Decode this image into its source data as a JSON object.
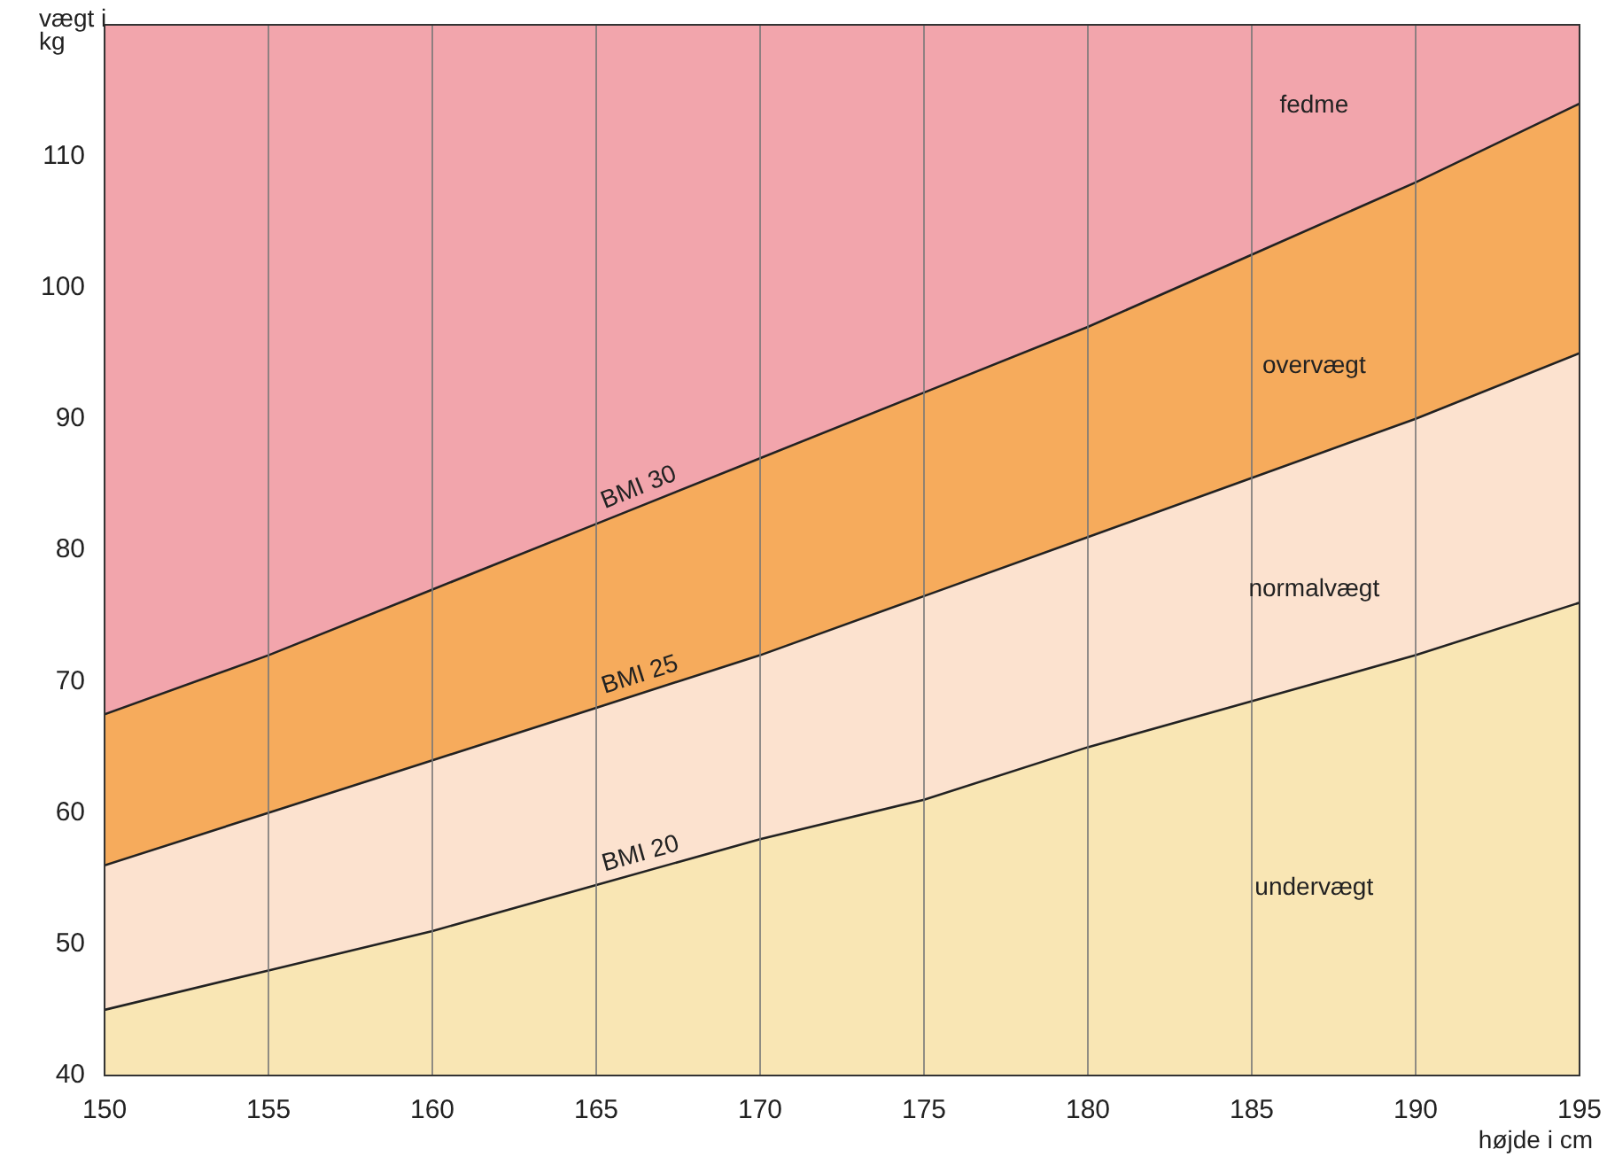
{
  "chart_data": {
    "type": "area",
    "xlabel": "højde i cm",
    "ylabel": "vægt i kg",
    "x": [
      150,
      155,
      160,
      165,
      170,
      175,
      180,
      185,
      190,
      195
    ],
    "series": [
      {
        "name": "BMI 20",
        "color": "#f9e6b4",
        "values": [
          45,
          48,
          51,
          54.5,
          58,
          61,
          65,
          68.5,
          72,
          76
        ]
      },
      {
        "name": "BMI 25",
        "color": "#fce2cf",
        "values": [
          56,
          60,
          64,
          68,
          72,
          76.5,
          81,
          85.5,
          90,
          95
        ]
      },
      {
        "name": "BMI 30",
        "color": "#f6ab5c",
        "values": [
          67.5,
          72,
          77,
          82,
          87,
          92,
          97,
          102.5,
          108,
          114
        ]
      }
    ],
    "bands": [
      {
        "axis": "y",
        "from": 67.5,
        "to": 120,
        "color": "#f2a5ac"
      }
    ],
    "annotations": [
      "fedme",
      "overvægt",
      "normalvægt",
      "undervægt"
    ],
    "xlim": [
      150,
      195
    ],
    "ylim": [
      40,
      120
    ],
    "xticks": [
      150,
      155,
      160,
      165,
      170,
      175,
      180,
      185,
      190,
      195
    ],
    "yticks": [
      40,
      50,
      60,
      70,
      80,
      90,
      100,
      110
    ],
    "grid": "x",
    "legend": false
  }
}
